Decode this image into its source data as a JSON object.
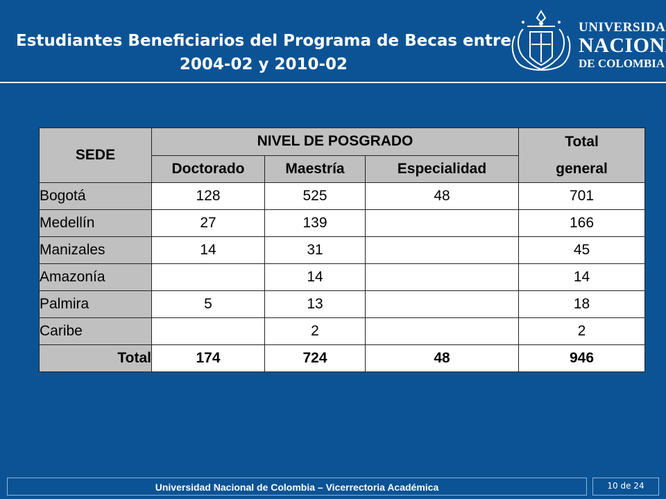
{
  "title": {
    "line1": "Estudiantes Beneficiarios del Programa de Becas entre",
    "line2": "2004-02 y 2010-02"
  },
  "logo": {
    "line1": "UNIVERSIDAD",
    "line2": "NACIONAL",
    "line3": "DE COLOMBIA",
    "icon": "university-seal-icon"
  },
  "table": {
    "headers": {
      "sede": "SEDE",
      "nivel": "NIVEL DE POSGRADO",
      "doctorado": "Doctorado",
      "maestria": "Maestría",
      "especialidad": "Especialidad",
      "total_line1": "Total",
      "total_line2": "general"
    },
    "rows": [
      {
        "sede": "Bogotá",
        "doctorado": "128",
        "maestria": "525",
        "especialidad": "48",
        "total": "701"
      },
      {
        "sede": "Medellín",
        "doctorado": "27",
        "maestria": "139",
        "especialidad": "",
        "total": "166"
      },
      {
        "sede": "Manizales",
        "doctorado": "14",
        "maestria": "31",
        "especialidad": "",
        "total": "45"
      },
      {
        "sede": "Amazonía",
        "doctorado": "",
        "maestria": "14",
        "especialidad": "",
        "total": "14"
      },
      {
        "sede": "Palmira",
        "doctorado": "5",
        "maestria": "13",
        "especialidad": "",
        "total": "18"
      },
      {
        "sede": "Caribe",
        "doctorado": "",
        "maestria": "2",
        "especialidad": "",
        "total": "2"
      }
    ],
    "total_row": {
      "label": "Total",
      "doctorado": "174",
      "maestria": "724",
      "especialidad": "48",
      "total": "946"
    }
  },
  "footer": {
    "text": "Universidad Nacional de Colombia – Vicerrectoria Académica",
    "page": "10 de 24"
  },
  "colors": {
    "background": "#0b5394",
    "header_gray": "#c0c0c0",
    "text_white": "#ffffff"
  }
}
